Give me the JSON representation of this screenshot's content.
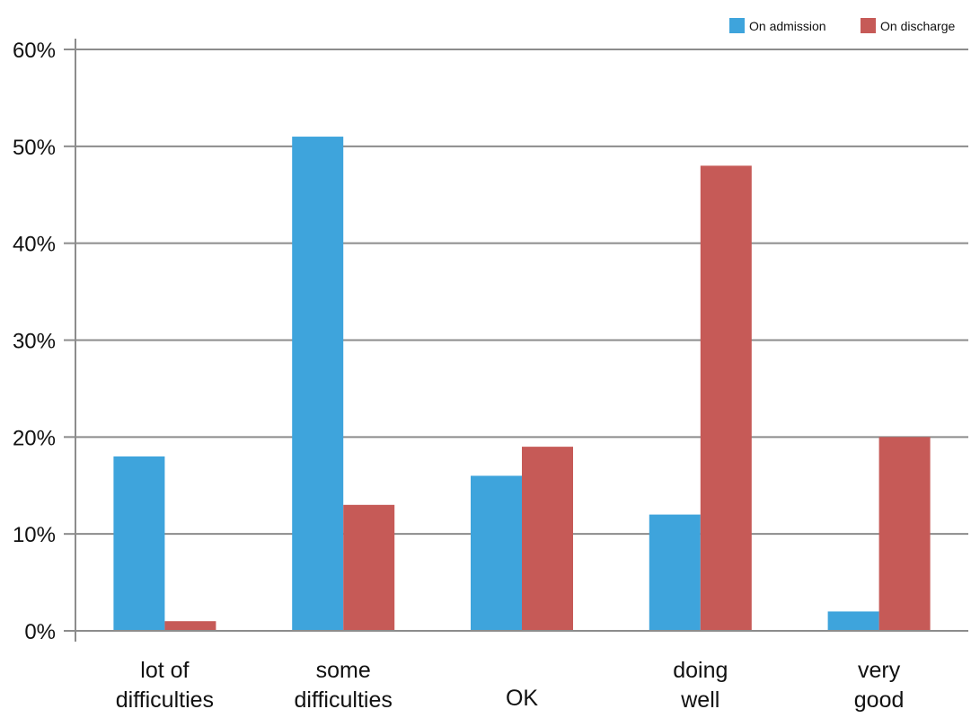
{
  "chart_data": {
    "type": "bar",
    "categories": [
      [
        "lot of",
        "difficulties"
      ],
      [
        "some",
        "difficulties"
      ],
      [
        "OK"
      ],
      [
        "doing",
        "well"
      ],
      [
        "very",
        "good"
      ]
    ],
    "series": [
      {
        "name": "On admission",
        "color": "#3ea4dc",
        "values": [
          18,
          51,
          16,
          12,
          2
        ]
      },
      {
        "name": "On discharge",
        "color": "#c65a57",
        "values": [
          1,
          13,
          19,
          48,
          20
        ]
      }
    ],
    "y_ticks": [
      "0%",
      "10%",
      "20%",
      "30%",
      "40%",
      "50%",
      "60%"
    ],
    "ylim": [
      0,
      60
    ],
    "grid": true,
    "legend_position": "top-right",
    "title": "",
    "xlabel": "",
    "ylabel": ""
  }
}
